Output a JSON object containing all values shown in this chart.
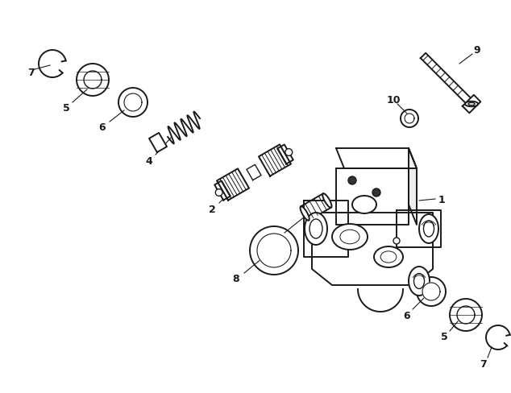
{
  "background_color": "#ffffff",
  "line_color": "#1a1a1a",
  "label_color": "#000000",
  "fig_width": 6.34,
  "fig_height": 4.89,
  "dpi": 100
}
